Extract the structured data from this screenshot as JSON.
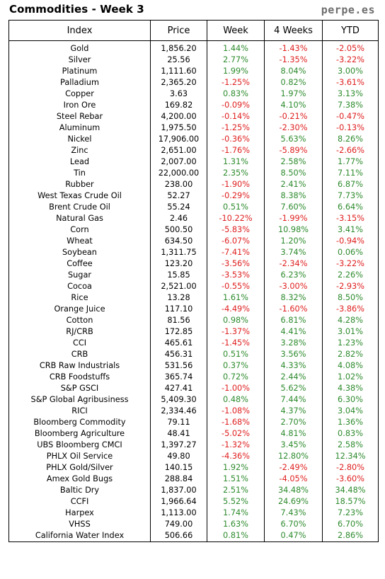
{
  "header": {
    "title": "Commodities - Week 3",
    "brand": "perpe.es"
  },
  "table": {
    "columns": [
      "Index",
      "Price",
      "Week",
      "4 Weeks",
      "YTD"
    ],
    "rows": [
      {
        "name": "Gold",
        "price": "1,856.20",
        "week": "1.44%",
        "four_weeks": "-1.43%",
        "ytd": "-2.05%"
      },
      {
        "name": "Silver",
        "price": "25.56",
        "week": "2.77%",
        "four_weeks": "-1.35%",
        "ytd": "-3.22%"
      },
      {
        "name": "Platinum",
        "price": "1,111.60",
        "week": "1.99%",
        "four_weeks": "8.04%",
        "ytd": "3.00%"
      },
      {
        "name": "Palladium",
        "price": "2,365.20",
        "week": "-1.25%",
        "four_weeks": "0.82%",
        "ytd": "-3.61%"
      },
      {
        "name": "Copper",
        "price": "3.63",
        "week": "0.83%",
        "four_weeks": "1.97%",
        "ytd": "3.13%"
      },
      {
        "name": "Iron Ore",
        "price": "169.82",
        "week": "-0.09%",
        "four_weeks": "4.10%",
        "ytd": "7.38%"
      },
      {
        "name": "Steel Rebar",
        "price": "4,200.00",
        "week": "-0.14%",
        "four_weeks": "-0.21%",
        "ytd": "-0.47%"
      },
      {
        "name": "Aluminum",
        "price": "1,975.50",
        "week": "-1.25%",
        "four_weeks": "-2.30%",
        "ytd": "-0.13%"
      },
      {
        "name": "Nickel",
        "price": "17,906.00",
        "week": "-0.36%",
        "four_weeks": "5.63%",
        "ytd": "8.26%"
      },
      {
        "name": "Zinc",
        "price": "2,651.00",
        "week": "-1.76%",
        "four_weeks": "-5.89%",
        "ytd": "-2.66%"
      },
      {
        "name": "Lead",
        "price": "2,007.00",
        "week": "1.31%",
        "four_weeks": "2.58%",
        "ytd": "1.77%"
      },
      {
        "name": "Tin",
        "price": "22,000.00",
        "week": "2.35%",
        "four_weeks": "8.50%",
        "ytd": "7.11%"
      },
      {
        "name": "Rubber",
        "price": "238.00",
        "week": "-1.90%",
        "four_weeks": "2.41%",
        "ytd": "6.87%"
      },
      {
        "name": "West Texas Crude Oil",
        "price": "52.27",
        "week": "-0.29%",
        "four_weeks": "8.38%",
        "ytd": "7.73%"
      },
      {
        "name": "Brent Crude Oil",
        "price": "55.24",
        "week": "0.51%",
        "four_weeks": "7.60%",
        "ytd": "6.64%"
      },
      {
        "name": "Natural Gas",
        "price": "2.46",
        "week": "-10.22%",
        "four_weeks": "-1.99%",
        "ytd": "-3.15%"
      },
      {
        "name": "Corn",
        "price": "500.50",
        "week": "-5.83%",
        "four_weeks": "10.98%",
        "ytd": "3.41%"
      },
      {
        "name": "Wheat",
        "price": "634.50",
        "week": "-6.07%",
        "four_weeks": "1.20%",
        "ytd": "-0.94%"
      },
      {
        "name": "Soybean",
        "price": "1,311.75",
        "week": "-7.41%",
        "four_weeks": "3.74%",
        "ytd": "0.06%"
      },
      {
        "name": "Coffee",
        "price": "123.20",
        "week": "-3.56%",
        "four_weeks": "-2.34%",
        "ytd": "-3.22%"
      },
      {
        "name": "Sugar",
        "price": "15.85",
        "week": "-3.53%",
        "four_weeks": "6.23%",
        "ytd": "2.26%"
      },
      {
        "name": "Cocoa",
        "price": "2,521.00",
        "week": "-0.55%",
        "four_weeks": "-3.00%",
        "ytd": "-2.93%"
      },
      {
        "name": "Rice",
        "price": "13.28",
        "week": "1.61%",
        "four_weeks": "8.32%",
        "ytd": "8.50%"
      },
      {
        "name": "Orange Juice",
        "price": "117.10",
        "week": "-4.49%",
        "four_weeks": "-1.60%",
        "ytd": "-3.86%"
      },
      {
        "name": "Cotton",
        "price": "81.56",
        "week": "0.98%",
        "four_weeks": "6.81%",
        "ytd": "4.28%"
      },
      {
        "name": "RJ/CRB",
        "price": "172.85",
        "week": "-1.37%",
        "four_weeks": "4.41%",
        "ytd": "3.01%"
      },
      {
        "name": "CCI",
        "price": "465.61",
        "week": "-1.45%",
        "four_weeks": "3.28%",
        "ytd": "1.23%"
      },
      {
        "name": "CRB",
        "price": "456.31",
        "week": "0.51%",
        "four_weeks": "3.56%",
        "ytd": "2.82%"
      },
      {
        "name": "CRB Raw Industrials",
        "price": "531.56",
        "week": "0.37%",
        "four_weeks": "4.33%",
        "ytd": "4.08%"
      },
      {
        "name": "CRB Foodstuffs",
        "price": "365.74",
        "week": "0.72%",
        "four_weeks": "2.44%",
        "ytd": "1.02%"
      },
      {
        "name": "S&P GSCI",
        "price": "427.41",
        "week": "-1.00%",
        "four_weeks": "5.62%",
        "ytd": "4.38%"
      },
      {
        "name": "S&P Global Agribusiness",
        "price": "5,409.30",
        "week": "0.48%",
        "four_weeks": "7.44%",
        "ytd": "6.30%"
      },
      {
        "name": "RICI",
        "price": "2,334.46",
        "week": "-1.08%",
        "four_weeks": "4.37%",
        "ytd": "3.04%"
      },
      {
        "name": "Bloomberg Commodity",
        "price": "79.11",
        "week": "-1.68%",
        "four_weeks": "2.70%",
        "ytd": "1.36%"
      },
      {
        "name": "Bloomberg Agriculture",
        "price": "48.41",
        "week": "-5.02%",
        "four_weeks": "4.81%",
        "ytd": "0.83%"
      },
      {
        "name": "UBS Bloomberg CMCI",
        "price": "1,397.27",
        "week": "-1.32%",
        "four_weeks": "3.45%",
        "ytd": "2.58%"
      },
      {
        "name": "PHLX Oil Service",
        "price": "49.80",
        "week": "-4.36%",
        "four_weeks": "12.80%",
        "ytd": "12.34%"
      },
      {
        "name": "PHLX Gold/Silver",
        "price": "140.15",
        "week": "1.92%",
        "four_weeks": "-2.49%",
        "ytd": "-2.80%"
      },
      {
        "name": "Amex Gold Bugs",
        "price": "288.84",
        "week": "1.51%",
        "four_weeks": "-4.05%",
        "ytd": "-3.60%"
      },
      {
        "name": "Baltic Dry",
        "price": "1,837.00",
        "week": "2.51%",
        "four_weeks": "34.48%",
        "ytd": "34.48%"
      },
      {
        "name": "CCFI",
        "price": "1,966.64",
        "week": "5.52%",
        "four_weeks": "24.69%",
        "ytd": "18.57%"
      },
      {
        "name": "Harpex",
        "price": "1,113.00",
        "week": "1.74%",
        "four_weeks": "7.43%",
        "ytd": "7.23%"
      },
      {
        "name": "VHSS",
        "price": "749.00",
        "week": "1.63%",
        "four_weeks": "6.70%",
        "ytd": "6.70%"
      },
      {
        "name": "California Water Index",
        "price": "506.66",
        "week": "0.81%",
        "four_weeks": "0.47%",
        "ytd": "2.86%"
      }
    ]
  },
  "colors": {
    "positive": "#2e8b2e",
    "negative": "#e02020",
    "brand": "#6e6e6e"
  }
}
